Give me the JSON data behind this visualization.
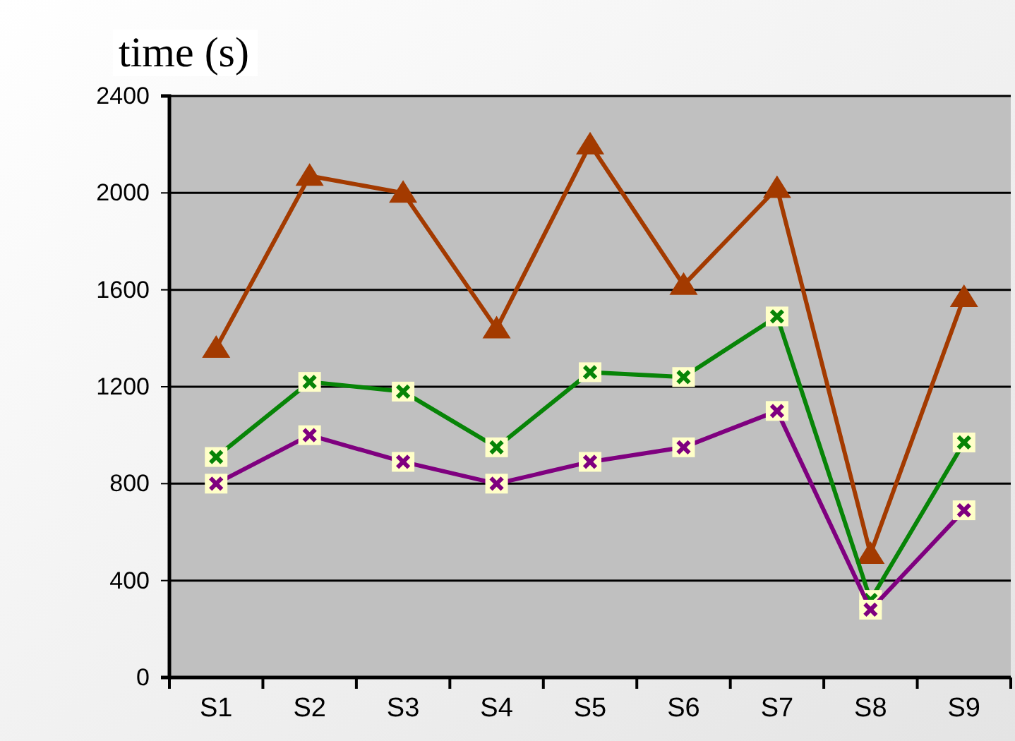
{
  "chart_data": {
    "type": "line",
    "ylabel": "time (s)",
    "categories": [
      "S1",
      "S2",
      "S3",
      "S4",
      "S5",
      "S6",
      "S7",
      "S8",
      "S9"
    ],
    "series": [
      {
        "color": "#a33a00",
        "marker": "triangle",
        "values": [
          1360,
          2070,
          2000,
          1440,
          2200,
          1620,
          2020,
          510,
          1570
        ]
      },
      {
        "color": "#078407",
        "marker": "cross",
        "values": [
          910,
          1220,
          1180,
          950,
          1260,
          1240,
          1490,
          320,
          970
        ]
      },
      {
        "color": "#7f007f",
        "marker": "cross",
        "values": [
          800,
          1000,
          890,
          800,
          890,
          950,
          1100,
          280,
          690
        ]
      }
    ],
    "ylim": [
      0,
      2400
    ],
    "yticks": [
      0,
      400,
      800,
      1200,
      1600,
      2000,
      2400
    ],
    "grid": "y",
    "line_style": "solid"
  }
}
